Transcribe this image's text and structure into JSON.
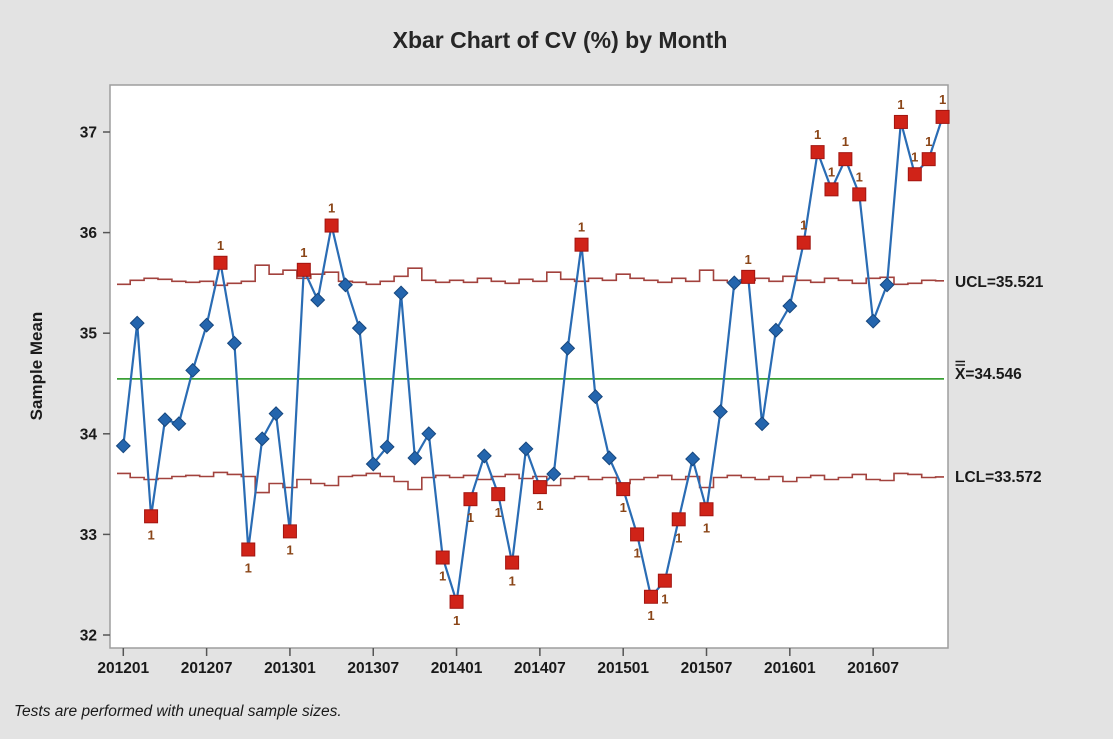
{
  "title": "Xbar Chart of CV (%) by Month",
  "ylabel": "Sample Mean",
  "xlabel_implicit": "Month",
  "footnote": "Tests are performed with unequal sample sizes.",
  "labels": {
    "ucl": "UCL=35.521",
    "center": "X=34.546",
    "lcl": "LCL=33.572"
  },
  "colors": {
    "background": "#e3e3e3",
    "plot_background": "#ffffff",
    "plot_border": "#9e9e9e",
    "series_line": "#2a6cb4",
    "marker_fill": "#2465ad",
    "marker_stroke": "#17477e",
    "ooc_fill": "#d02318",
    "ooc_stroke": "#a21510",
    "limit_line": "#a2423d",
    "center_line": "#3aa035",
    "flag_text": "#8a4517",
    "text": "#1a1a1a"
  },
  "chart_data": {
    "type": "line",
    "subtype": "xbar-control-chart",
    "title": "Xbar Chart of CV (%) by Month",
    "xlabel": "Month",
    "ylabel": "Sample Mean",
    "ylim": [
      31.9,
      37.5
    ],
    "yticks": [
      32,
      33,
      34,
      35,
      36,
      37
    ],
    "x_tick_labels": [
      "201201",
      "201207",
      "201301",
      "201307",
      "201401",
      "201407",
      "201501",
      "201507",
      "201601",
      "201607"
    ],
    "center_value": 34.546,
    "ucl_value": 35.521,
    "lcl_value": 33.572,
    "flag_label": "1",
    "points": [
      {
        "month": "201201",
        "value": 33.88,
        "ooc": false
      },
      {
        "month": "201202",
        "value": 35.1,
        "ooc": false
      },
      {
        "month": "201203",
        "value": 33.18,
        "ooc": true
      },
      {
        "month": "201204",
        "value": 34.14,
        "ooc": false
      },
      {
        "month": "201205",
        "value": 34.1,
        "ooc": false
      },
      {
        "month": "201206",
        "value": 34.63,
        "ooc": false
      },
      {
        "month": "201207",
        "value": 35.08,
        "ooc": false
      },
      {
        "month": "201208",
        "value": 35.7,
        "ooc": true
      },
      {
        "month": "201209",
        "value": 34.9,
        "ooc": false
      },
      {
        "month": "201210",
        "value": 32.85,
        "ooc": true
      },
      {
        "month": "201211",
        "value": 33.95,
        "ooc": false
      },
      {
        "month": "201212",
        "value": 34.2,
        "ooc": false
      },
      {
        "month": "201301",
        "value": 33.03,
        "ooc": true
      },
      {
        "month": "201302",
        "value": 35.63,
        "ooc": true
      },
      {
        "month": "201303",
        "value": 35.33,
        "ooc": false
      },
      {
        "month": "201304",
        "value": 36.07,
        "ooc": true
      },
      {
        "month": "201305",
        "value": 35.48,
        "ooc": false
      },
      {
        "month": "201306",
        "value": 35.05,
        "ooc": false
      },
      {
        "month": "201307",
        "value": 33.7,
        "ooc": false
      },
      {
        "month": "201308",
        "value": 33.87,
        "ooc": false
      },
      {
        "month": "201309",
        "value": 35.4,
        "ooc": false
      },
      {
        "month": "201310",
        "value": 33.76,
        "ooc": false
      },
      {
        "month": "201311",
        "value": 34.0,
        "ooc": false
      },
      {
        "month": "201312",
        "value": 32.77,
        "ooc": true
      },
      {
        "month": "201401",
        "value": 32.33,
        "ooc": true
      },
      {
        "month": "201402",
        "value": 33.35,
        "ooc": true
      },
      {
        "month": "201403",
        "value": 33.78,
        "ooc": false
      },
      {
        "month": "201404",
        "value": 33.4,
        "ooc": true
      },
      {
        "month": "201405",
        "value": 32.72,
        "ooc": true
      },
      {
        "month": "201406",
        "value": 33.85,
        "ooc": false
      },
      {
        "month": "201407",
        "value": 33.47,
        "ooc": true
      },
      {
        "month": "201408",
        "value": 33.6,
        "ooc": false
      },
      {
        "month": "201409",
        "value": 34.85,
        "ooc": false
      },
      {
        "month": "201410",
        "value": 35.88,
        "ooc": true
      },
      {
        "month": "201411",
        "value": 34.37,
        "ooc": false
      },
      {
        "month": "201412",
        "value": 33.76,
        "ooc": false
      },
      {
        "month": "201501",
        "value": 33.45,
        "ooc": true
      },
      {
        "month": "201502",
        "value": 33.0,
        "ooc": true
      },
      {
        "month": "201503",
        "value": 32.38,
        "ooc": true
      },
      {
        "month": "201504",
        "value": 32.54,
        "ooc": true
      },
      {
        "month": "201505",
        "value": 33.15,
        "ooc": true
      },
      {
        "month": "201506",
        "value": 33.75,
        "ooc": false
      },
      {
        "month": "201507",
        "value": 33.25,
        "ooc": true
      },
      {
        "month": "201508",
        "value": 34.22,
        "ooc": false
      },
      {
        "month": "201509",
        "value": 35.5,
        "ooc": false
      },
      {
        "month": "201510",
        "value": 35.56,
        "ooc": true
      },
      {
        "month": "201511",
        "value": 34.1,
        "ooc": false
      },
      {
        "month": "201512",
        "value": 35.03,
        "ooc": false
      },
      {
        "month": "201601",
        "value": 35.27,
        "ooc": false
      },
      {
        "month": "201602",
        "value": 35.9,
        "ooc": true
      },
      {
        "month": "201603",
        "value": 36.8,
        "ooc": true
      },
      {
        "month": "201604",
        "value": 36.43,
        "ooc": true
      },
      {
        "month": "201605",
        "value": 36.73,
        "ooc": true
      },
      {
        "month": "201606",
        "value": 36.38,
        "ooc": true
      },
      {
        "month": "201607",
        "value": 35.12,
        "ooc": false
      },
      {
        "month": "201608",
        "value": 35.48,
        "ooc": false
      },
      {
        "month": "201609",
        "value": 37.1,
        "ooc": true
      },
      {
        "month": "201610",
        "value": 36.58,
        "ooc": true
      },
      {
        "month": "201611",
        "value": 36.73,
        "ooc": true
      },
      {
        "month": "201612",
        "value": 37.15,
        "ooc": true
      }
    ],
    "ucl_steps": [
      35.486,
      35.526,
      35.546,
      35.536,
      35.516,
      35.506,
      35.516,
      35.476,
      35.496,
      35.516,
      35.676,
      35.586,
      35.626,
      35.546,
      35.586,
      35.606,
      35.516,
      35.506,
      35.486,
      35.516,
      35.566,
      35.646,
      35.526,
      35.506,
      35.526,
      35.506,
      35.546,
      35.516,
      35.496,
      35.536,
      35.516,
      35.606,
      35.536,
      35.516,
      35.546,
      35.526,
      35.586,
      35.546,
      35.526,
      35.506,
      35.546,
      35.516,
      35.626,
      35.526,
      35.506,
      35.526,
      35.546,
      35.516,
      35.566,
      35.526,
      35.506,
      35.546,
      35.526,
      35.496,
      35.546,
      35.556,
      35.486,
      35.496,
      35.526,
      35.521
    ],
    "lcl_steps": [
      33.606,
      33.566,
      33.546,
      33.556,
      33.576,
      33.586,
      33.576,
      33.616,
      33.596,
      33.576,
      33.416,
      33.506,
      33.466,
      33.546,
      33.506,
      33.486,
      33.576,
      33.586,
      33.606,
      33.576,
      33.526,
      33.446,
      33.566,
      33.586,
      33.566,
      33.586,
      33.546,
      33.576,
      33.596,
      33.556,
      33.576,
      33.486,
      33.556,
      33.576,
      33.546,
      33.566,
      33.506,
      33.546,
      33.566,
      33.586,
      33.546,
      33.576,
      33.466,
      33.566,
      33.586,
      33.566,
      33.546,
      33.576,
      33.526,
      33.566,
      33.586,
      33.546,
      33.566,
      33.596,
      33.546,
      33.536,
      33.606,
      33.596,
      33.566,
      33.572
    ],
    "legend_position": "none",
    "grid": false
  }
}
